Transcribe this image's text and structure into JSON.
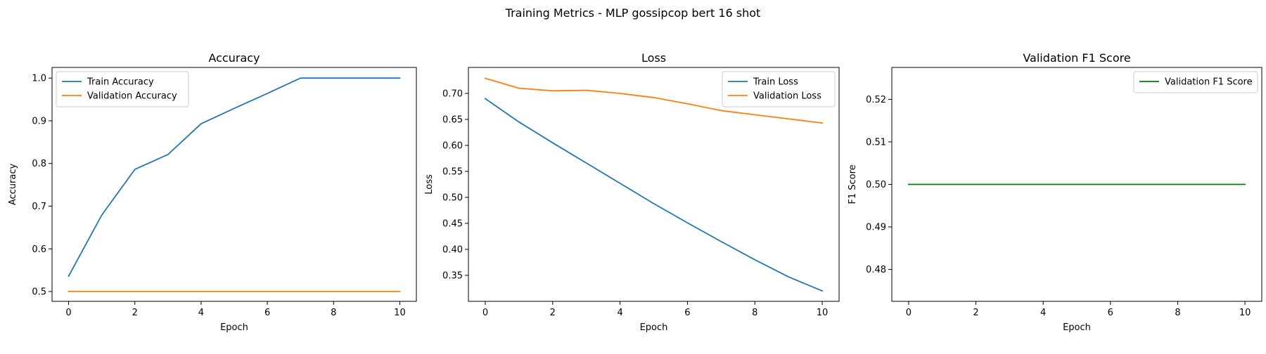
{
  "figure": {
    "suptitle": "Training Metrics - MLP gossipcop bert 16 shot"
  },
  "chart_data": [
    {
      "type": "line",
      "title": "Accuracy",
      "xlabel": "Epoch",
      "ylabel": "Accuracy",
      "xlim": [
        -0.5,
        10.5
      ],
      "ylim": [
        0.477,
        1.025
      ],
      "xticks": [
        0,
        2,
        4,
        6,
        8,
        10
      ],
      "yticks": [
        0.5,
        0.6,
        0.7,
        0.8,
        0.9,
        1.0
      ],
      "ytick_labels": [
        "0.5",
        "0.6",
        "0.7",
        "0.8",
        "0.9",
        "1.0"
      ],
      "legend_position": "upper left",
      "grid": false,
      "x": [
        0,
        1,
        2,
        3,
        4,
        5,
        6,
        7,
        8,
        9,
        10
      ],
      "series": [
        {
          "name": "Train Accuracy",
          "color": "#1f77b4",
          "values": [
            0.536,
            0.679,
            0.786,
            0.821,
            0.893,
            0.929,
            0.964,
            1.0,
            1.0,
            1.0,
            1.0
          ]
        },
        {
          "name": "Validation Accuracy",
          "color": "#ff7f0e",
          "values": [
            0.5,
            0.5,
            0.5,
            0.5,
            0.5,
            0.5,
            0.5,
            0.5,
            0.5,
            0.5,
            0.5
          ]
        }
      ]
    },
    {
      "type": "line",
      "title": "Loss",
      "xlabel": "Epoch",
      "ylabel": "Loss",
      "xlim": [
        -0.5,
        10.5
      ],
      "ylim": [
        0.3,
        0.75
      ],
      "xticks": [
        0,
        2,
        4,
        6,
        8,
        10
      ],
      "yticks": [
        0.35,
        0.4,
        0.45,
        0.5,
        0.55,
        0.6,
        0.65,
        0.7
      ],
      "ytick_labels": [
        "0.35",
        "0.40",
        "0.45",
        "0.50",
        "0.55",
        "0.60",
        "0.65",
        "0.70"
      ],
      "legend_position": "upper right",
      "grid": false,
      "x": [
        0,
        1,
        2,
        3,
        4,
        5,
        6,
        7,
        8,
        9,
        10
      ],
      "series": [
        {
          "name": "Train Loss",
          "color": "#1f77b4",
          "values": [
            0.69,
            0.645,
            0.605,
            0.566,
            0.527,
            0.488,
            0.451,
            0.415,
            0.38,
            0.347,
            0.32
          ]
        },
        {
          "name": "Validation Loss",
          "color": "#ff7f0e",
          "values": [
            0.729,
            0.71,
            0.705,
            0.706,
            0.7,
            0.692,
            0.68,
            0.667,
            0.659,
            0.651,
            0.643
          ]
        }
      ]
    },
    {
      "type": "line",
      "title": "Validation F1 Score",
      "xlabel": "Epoch",
      "ylabel": "F1 Score",
      "xlim": [
        -0.5,
        10.5
      ],
      "ylim": [
        0.4725,
        0.5275
      ],
      "xticks": [
        0,
        2,
        4,
        6,
        8,
        10
      ],
      "yticks": [
        0.48,
        0.49,
        0.5,
        0.51,
        0.52
      ],
      "ytick_labels": [
        "0.48",
        "0.49",
        "0.50",
        "0.51",
        "0.52"
      ],
      "legend_position": "upper right",
      "grid": false,
      "x": [
        0,
        1,
        2,
        3,
        4,
        5,
        6,
        7,
        8,
        9,
        10
      ],
      "series": [
        {
          "name": "Validation F1 Score",
          "color": "#008000",
          "values": [
            0.5,
            0.5,
            0.5,
            0.5,
            0.5,
            0.5,
            0.5,
            0.5,
            0.5,
            0.5,
            0.5
          ]
        }
      ]
    }
  ]
}
